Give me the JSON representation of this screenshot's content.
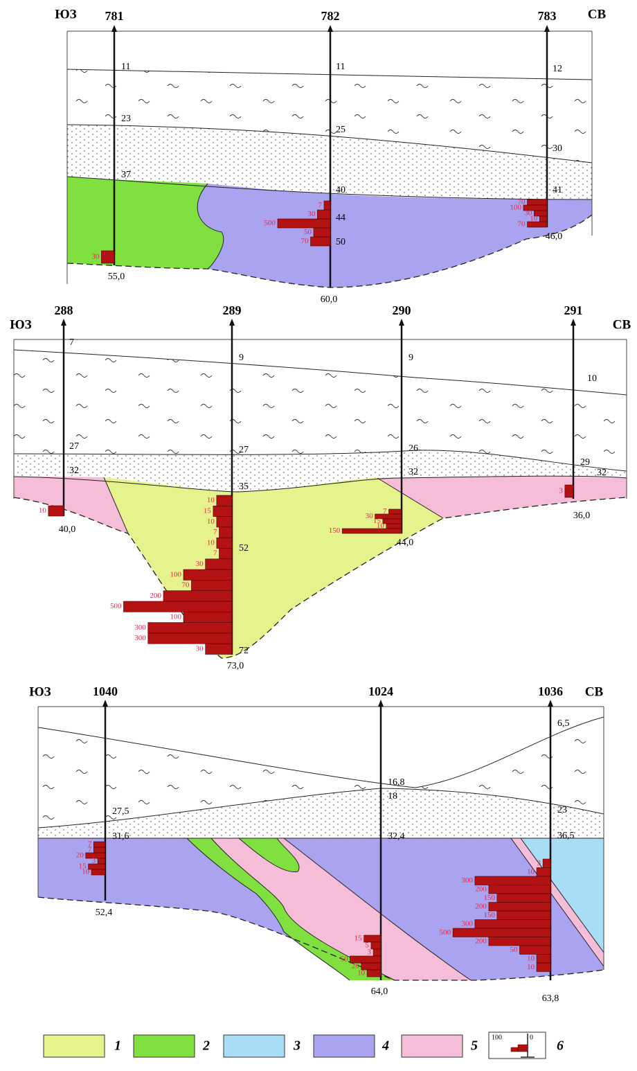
{
  "sections": [
    {
      "left": "ЮЗ",
      "right": "СВ",
      "wells": [
        {
          "name": "781",
          "depths": [
            "11",
            "23",
            "37"
          ],
          "bottom": "55,0",
          "bars": [
            30
          ]
        },
        {
          "name": "782",
          "depths": [
            "11",
            "25",
            "40",
            "44",
            "50"
          ],
          "bottom": "60,0",
          "bars": [
            7,
            30,
            500,
            50,
            70
          ]
        },
        {
          "name": "783",
          "depths": [
            "12",
            "30",
            "41"
          ],
          "bottom": "46,0",
          "bars": [
            70,
            100,
            30,
            10,
            70
          ]
        }
      ]
    },
    {
      "left": "ЮЗ",
      "right": "СВ",
      "wells": [
        {
          "name": "288",
          "depths": [
            "7",
            "27",
            "32"
          ],
          "bottom": "40,0",
          "bars": [
            10
          ]
        },
        {
          "name": "289",
          "depths": [
            "9",
            "27",
            "35",
            "52",
            "72"
          ],
          "bottom": "73,0",
          "bars": [
            10,
            15,
            10,
            7,
            10,
            7,
            30,
            100,
            70,
            200,
            500,
            100,
            300,
            300,
            30
          ]
        },
        {
          "name": "290",
          "depths": [
            "9",
            "26",
            "32"
          ],
          "bottom": "44,0",
          "bars": [
            7,
            30,
            15,
            10,
            150
          ]
        },
        {
          "name": "291",
          "depths": [
            "10",
            "29",
            "32"
          ],
          "bottom": "36,0",
          "bars": [
            3
          ]
        }
      ]
    },
    {
      "left": "ЮЗ",
      "right": "СВ",
      "wells": [
        {
          "name": "1040",
          "depths": [
            "27,5",
            "31,6"
          ],
          "bottom": "52,4",
          "bars": [
            7,
            7,
            20,
            3,
            15,
            10
          ]
        },
        {
          "name": "1024",
          "depths": [
            "16,8",
            "18",
            "32,4"
          ],
          "bottom": "64,0",
          "bars": [
            15,
            5,
            3,
            50,
            20,
            10
          ]
        },
        {
          "name": "1036",
          "depths": [
            "6,5",
            "23",
            "36,5"
          ],
          "bottom": "63,8",
          "bars": [
            3,
            10,
            300,
            200,
            150,
            200,
            150,
            300,
            500,
            200,
            50,
            10,
            10
          ]
        }
      ]
    }
  ],
  "legend": {
    "items": [
      "1",
      "2",
      "3",
      "4",
      "5",
      "6"
    ],
    "sample": [
      "100",
      "0"
    ]
  }
}
